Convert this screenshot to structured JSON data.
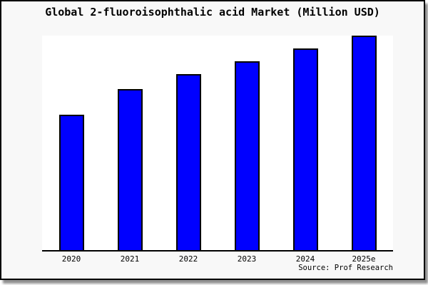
{
  "page": {
    "card_background": "#f8f8f8",
    "plot_background": "#ffffff",
    "border_color": "#000000",
    "shadow_color": "#8f8f8f"
  },
  "chart_data": {
    "type": "bar",
    "title": "Global 2-fluoroisophthalic acid Market (Million USD)",
    "categories": [
      "2020",
      "2021",
      "2022",
      "2023",
      "2024",
      "2025e"
    ],
    "values": [
      63,
      75,
      82,
      88,
      94,
      100
    ],
    "values_unit": "relative height, percent of tallest (2025e) bar; no y-axis scale shown in image",
    "xlabel": "",
    "ylabel": "",
    "ylim": [
      0,
      100
    ],
    "grid": false,
    "legend": false,
    "axes_shown": "x-axis line only, no ticks, no y-axis",
    "bar_color": "#0000ff",
    "bar_border_color": "#000000"
  },
  "source": {
    "label": "Source: Prof Research"
  }
}
